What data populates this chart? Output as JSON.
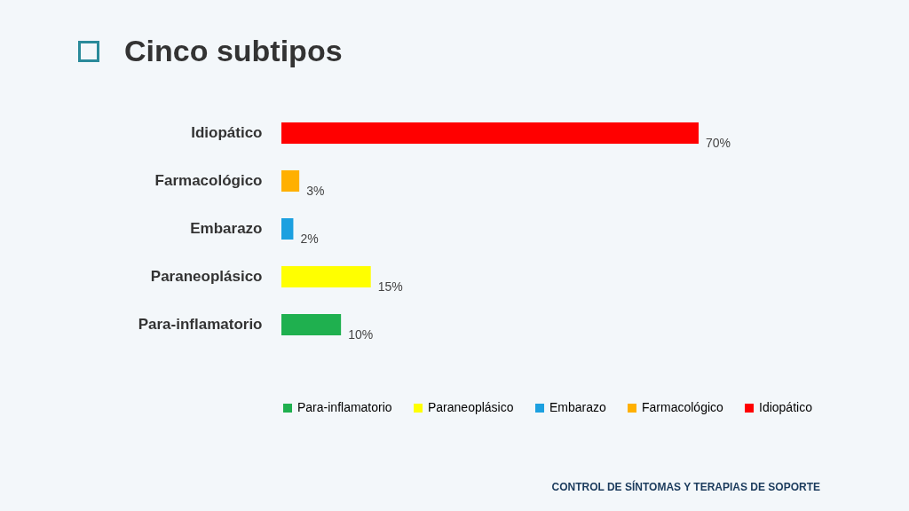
{
  "chart_data": {
    "type": "bar",
    "orientation": "horizontal",
    "title": "Cinco subtipos",
    "categories": [
      "Idiopático",
      "Farmacológico",
      "Embarazo",
      "Paraneoplásico",
      "Para-inflamatorio"
    ],
    "series": [
      {
        "name": "Para-inflamatorio",
        "color": "#1fb04f",
        "values": [
          null,
          null,
          null,
          null,
          10
        ],
        "value_labels": [
          null,
          null,
          null,
          null,
          "10%"
        ]
      },
      {
        "name": "Paraneoplásico",
        "color": "#ffff00",
        "values": [
          null,
          null,
          null,
          15,
          null
        ],
        "value_labels": [
          null,
          null,
          null,
          "15%",
          null
        ]
      },
      {
        "name": "Embarazo",
        "color": "#1ca0e0",
        "values": [
          null,
          null,
          2,
          null,
          null
        ],
        "value_labels": [
          null,
          null,
          "2%",
          null,
          null
        ]
      },
      {
        "name": "Farmacológico",
        "color": "#ffb000",
        "values": [
          null,
          3,
          null,
          null,
          null
        ],
        "value_labels": [
          null,
          "3%",
          null,
          null,
          null
        ]
      },
      {
        "name": "Idiopático",
        "color": "#ff0000",
        "values": [
          70,
          null,
          null,
          null,
          null
        ],
        "value_labels": [
          "70%",
          null,
          null,
          null,
          null
        ]
      }
    ],
    "legend": "bottom",
    "annotations": [
      "CONTROL DE SÍNTOMAS Y TERAPIAS DE SOPORTE"
    ]
  }
}
